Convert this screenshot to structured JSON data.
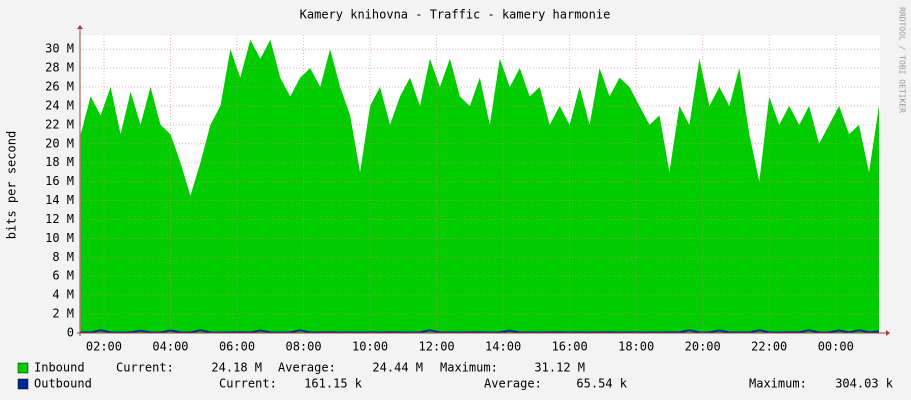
{
  "chart_data": {
    "type": "area",
    "title": "Kamery knihovna - Traffic - kamery harmonie",
    "ylabel": "bits per second",
    "watermark": "RRDTOOL / TOBI OETIKER",
    "grid": true,
    "xlim": [
      1.28,
      25.33
    ],
    "xticks": [
      {
        "value": 2,
        "label": "02:00"
      },
      {
        "value": 4,
        "label": "04:00"
      },
      {
        "value": 6,
        "label": "06:00"
      },
      {
        "value": 8,
        "label": "08:00"
      },
      {
        "value": 10,
        "label": "10:00"
      },
      {
        "value": 12,
        "label": "12:00"
      },
      {
        "value": 14,
        "label": "14:00"
      },
      {
        "value": 16,
        "label": "16:00"
      },
      {
        "value": 18,
        "label": "18:00"
      },
      {
        "value": 20,
        "label": "20:00"
      },
      {
        "value": 22,
        "label": "22:00"
      },
      {
        "value": 24,
        "label": "00:00"
      }
    ],
    "ylim": [
      0,
      31.5
    ],
    "yticks": [
      0,
      {
        "value": 2,
        "label": "2 M"
      },
      {
        "value": 4,
        "label": "4 M"
      },
      {
        "value": 6,
        "label": "6 M"
      },
      {
        "value": 8,
        "label": "8 M"
      },
      {
        "value": 10,
        "label": "10 M"
      },
      {
        "value": 12,
        "label": "12 M"
      },
      {
        "value": 14,
        "label": "14 M"
      },
      {
        "value": 16,
        "label": "16 M"
      },
      {
        "value": 18,
        "label": "18 M"
      },
      {
        "value": 20,
        "label": "20 M"
      },
      {
        "value": 22,
        "label": "22 M"
      },
      {
        "value": 24,
        "label": "24 M"
      },
      {
        "value": 26,
        "label": "26 M"
      },
      {
        "value": 28,
        "label": "28 M"
      },
      {
        "value": 30,
        "label": "30 M"
      }
    ],
    "x": [
      1.3,
      1.6,
      1.9,
      2.2,
      2.5,
      2.8,
      3.1,
      3.4,
      3.7,
      4.0,
      4.3,
      4.6,
      4.9,
      5.2,
      5.5,
      5.8,
      6.1,
      6.4,
      6.7,
      7.0,
      7.3,
      7.6,
      7.9,
      8.2,
      8.5,
      8.8,
      9.1,
      9.4,
      9.7,
      10.0,
      10.3,
      10.6,
      10.9,
      11.2,
      11.5,
      11.8,
      12.1,
      12.4,
      12.7,
      13.0,
      13.3,
      13.6,
      13.9,
      14.2,
      14.5,
      14.8,
      15.1,
      15.4,
      15.7,
      16.0,
      16.3,
      16.6,
      16.9,
      17.2,
      17.5,
      17.8,
      18.1,
      18.4,
      18.7,
      19.0,
      19.3,
      19.6,
      19.9,
      20.2,
      20.5,
      20.8,
      21.1,
      21.4,
      21.7,
      22.0,
      22.3,
      22.6,
      22.9,
      23.2,
      23.5,
      23.8,
      24.1,
      24.4,
      24.7,
      25.0,
      25.3
    ],
    "series": [
      {
        "name": "Inbound",
        "color": "#00cc00",
        "stats": [
          "24.18 M",
          "24.44 M",
          "31.12 M"
        ],
        "values": [
          21,
          25,
          23,
          26,
          21,
          25.5,
          22,
          26,
          22,
          21,
          18,
          14.5,
          18,
          22,
          24,
          30,
          27,
          31,
          29,
          31,
          27,
          25,
          27,
          28,
          26,
          30,
          26,
          23,
          17,
          24,
          26,
          22,
          25,
          27,
          24,
          29,
          26,
          29,
          25,
          24,
          27,
          22,
          29,
          26,
          28,
          25,
          26,
          22,
          24,
          22,
          26,
          22,
          28,
          25,
          27,
          26,
          24,
          22,
          23,
          17,
          24,
          22,
          29,
          24,
          26,
          24,
          28,
          21,
          16,
          25,
          22,
          24,
          22,
          24,
          20,
          22,
          24,
          21,
          22,
          17,
          24
        ]
      },
      {
        "name": "Outbound",
        "color": "#002a97",
        "stats": [
          "161.15 k",
          "65.54 k",
          "304.03 k"
        ],
        "values": [
          0.06,
          0.05,
          0.3,
          0.06,
          0.05,
          0.07,
          0.25,
          0.06,
          0.05,
          0.28,
          0.06,
          0.05,
          0.3,
          0.06,
          0.05,
          0.06,
          0.07,
          0.05,
          0.28,
          0.06,
          0.05,
          0.06,
          0.3,
          0.05,
          0.06,
          0.07,
          0.05,
          0.06,
          0.05,
          0.06,
          0.05,
          0.07,
          0.06,
          0.05,
          0.06,
          0.3,
          0.05,
          0.06,
          0.05,
          0.06,
          0.07,
          0.05,
          0.06,
          0.25,
          0.05,
          0.06,
          0.05,
          0.06,
          0.07,
          0.05,
          0.06,
          0.05,
          0.06,
          0.07,
          0.05,
          0.06,
          0.05,
          0.06,
          0.05,
          0.07,
          0.06,
          0.3,
          0.05,
          0.06,
          0.28,
          0.05,
          0.06,
          0.05,
          0.3,
          0.06,
          0.05,
          0.07,
          0.06,
          0.3,
          0.05,
          0.06,
          0.28,
          0.05,
          0.3,
          0.06,
          0.16
        ]
      }
    ],
    "stat_labels": [
      "Current:",
      "Average:",
      "Maximum:"
    ]
  }
}
